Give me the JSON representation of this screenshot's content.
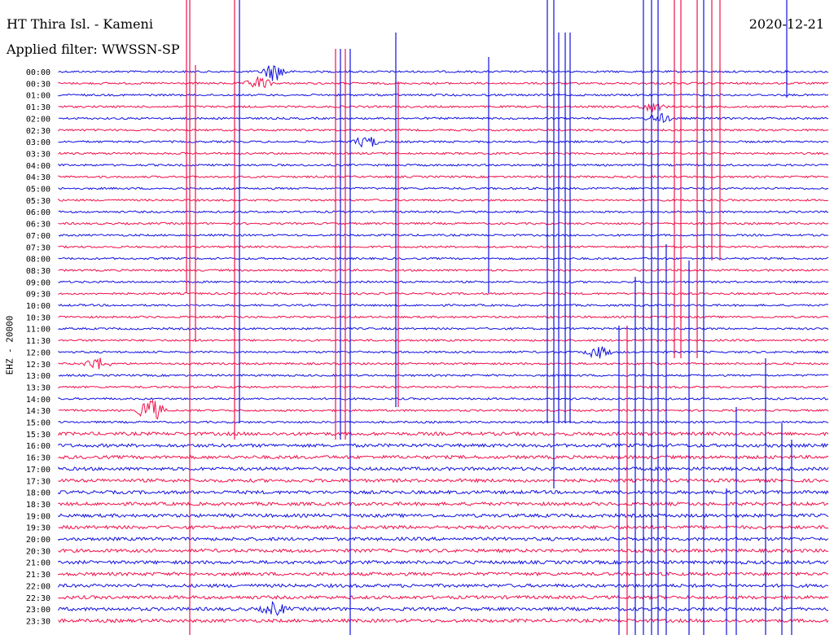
{
  "header": {
    "station": "HT Thira Isl. - Kameni",
    "filter": "Applied filter: WWSSN-SP",
    "date": "2020-12-21",
    "channel": "EHZ - 20000"
  },
  "colors": {
    "trace_a": "#1010e0",
    "trace_b": "#f0104a"
  },
  "chart_data": {
    "type": "line",
    "description_kind": "helicorder seismogram",
    "trace_colors": [
      "#1010e0",
      "#f0104a"
    ],
    "tick_labels": [
      "00:00",
      "00:30",
      "01:00",
      "01:30",
      "02:00",
      "02:30",
      "03:00",
      "03:30",
      "04:00",
      "04:30",
      "05:00",
      "05:30",
      "06:00",
      "06:30",
      "07:00",
      "07:30",
      "08:00",
      "08:30",
      "09:00",
      "09:30",
      "10:00",
      "10:30",
      "11:00",
      "11:30",
      "12:00",
      "12:30",
      "13:00",
      "13:30",
      "14:00",
      "14:30",
      "15:00",
      "15:30",
      "16:00",
      "16:30",
      "17:00",
      "17:30",
      "18:00",
      "18:30",
      "19:00",
      "19:30",
      "20:00",
      "20:30",
      "21:00",
      "21:30",
      "22:00",
      "22:30",
      "23:00",
      "23:30"
    ],
    "events": [
      {
        "row": 0,
        "t": 0.28,
        "amp": 3
      },
      {
        "row": 1,
        "t": 0.26,
        "amp": 2
      },
      {
        "row": 3,
        "t": 0.77,
        "amp": 1.5
      },
      {
        "row": 4,
        "t": 0.78,
        "amp": 1.5
      },
      {
        "row": 6,
        "t": 0.4,
        "amp": 2
      },
      {
        "row": 24,
        "t": 0.7,
        "amp": 2
      },
      {
        "row": 25,
        "t": 0.05,
        "amp": 2
      },
      {
        "row": 29,
        "t": 0.12,
        "amp": 4
      },
      {
        "row": 46,
        "t": 0.28,
        "amp": 2
      }
    ]
  }
}
